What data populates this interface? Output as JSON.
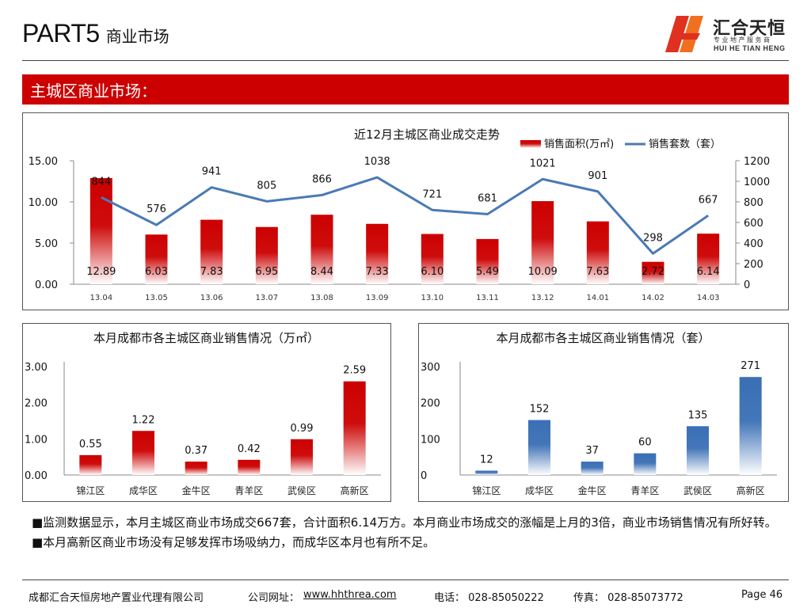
{
  "header": {
    "part": "PART5",
    "section": "商业市场"
  },
  "logo": {
    "name_cn": "汇合天恒",
    "tagline": "专业地产服务商",
    "name_en": "HUI HE TIAN HENG",
    "colors": {
      "mark_red": "#e03020",
      "mark_orange": "#f07020"
    }
  },
  "banner": {
    "title": "主城区商业市场：",
    "color": "#cc0000"
  },
  "chart_main": {
    "type": "bar+line",
    "title": "近12月主城区商业成交走势",
    "categories": [
      "13.04",
      "13.05",
      "13.06",
      "13.07",
      "13.08",
      "13.09",
      "13.10",
      "13.11",
      "13.12",
      "14.01",
      "14.02",
      "14.03"
    ],
    "series": [
      {
        "name": "销售面积(万㎡)",
        "type": "bar",
        "axis": "left",
        "values": [
          12.89,
          6.03,
          7.83,
          6.95,
          8.44,
          7.33,
          6.1,
          5.49,
          10.09,
          7.63,
          2.72,
          6.14
        ],
        "labels": [
          "12.89",
          "6.03",
          "7.83",
          "6.95",
          "8.44",
          "7.33",
          "6.10",
          "5.49",
          "10.09",
          "7.63",
          "2.72",
          "6.14"
        ],
        "color": "#cc0000"
      },
      {
        "name": "销售套数（套）",
        "type": "line",
        "axis": "right",
        "values": [
          844,
          576,
          941,
          805,
          866,
          1038,
          721,
          681,
          1021,
          901,
          298,
          667
        ],
        "labels": [
          "844",
          "576",
          "941",
          "805",
          "866",
          "1038",
          "721",
          "681",
          "1021",
          "901",
          "298",
          "667"
        ],
        "color": "#4a7ab5"
      }
    ],
    "ylim_left": [
      0,
      15
    ],
    "yticks_left": [
      "0.00",
      "5.00",
      "10.00",
      "15.00"
    ],
    "ylim_right": [
      0,
      1200
    ],
    "yticks_right": [
      "0",
      "200",
      "400",
      "600",
      "800",
      "1000",
      "1200"
    ],
    "legend_position": "top-right"
  },
  "chart_area": {
    "type": "bar",
    "title": "本月成都市各主城区商业销售情况（万㎡）",
    "categories": [
      "锦江区",
      "成华区",
      "金牛区",
      "青羊区",
      "武侯区",
      "高新区"
    ],
    "values": [
      0.55,
      1.22,
      0.37,
      0.42,
      0.99,
      2.59
    ],
    "labels": [
      "0.55",
      "1.22",
      "0.37",
      "0.42",
      "0.99",
      "2.59"
    ],
    "ylim": [
      0,
      3
    ],
    "yticks": [
      "0.00",
      "1.00",
      "2.00",
      "3.00"
    ],
    "color": "#cc0000"
  },
  "chart_units": {
    "type": "bar",
    "title": "本月成都市各主城区商业销售情况（套）",
    "categories": [
      "锦江区",
      "成华区",
      "金牛区",
      "青羊区",
      "武侯区",
      "高新区"
    ],
    "values": [
      12,
      152,
      37,
      60,
      135,
      271
    ],
    "labels": [
      "12",
      "152",
      "37",
      "60",
      "135",
      "271"
    ],
    "ylim": [
      0,
      300
    ],
    "yticks": [
      "0",
      "100",
      "200",
      "300"
    ],
    "color": "#3a6fb5"
  },
  "notes": [
    "■监测数据显示，本月主城区商业市场成交667套，合计面积6.14万方。本月商业市场成交的涨幅是上月的3倍，商业市场销售情况有所好转。",
    "■本月高新区商业市场没有足够发挥市场吸纳力，而成华区本月也有所不足。"
  ],
  "footer": {
    "company": "成都汇合天恒房地产置业代理有限公司",
    "website_label": "公司网址：",
    "website": "www.hhthrea.com",
    "phone": "电话： 028-85050222",
    "fax": "传真： 028-85073772",
    "page": "Page 46"
  }
}
